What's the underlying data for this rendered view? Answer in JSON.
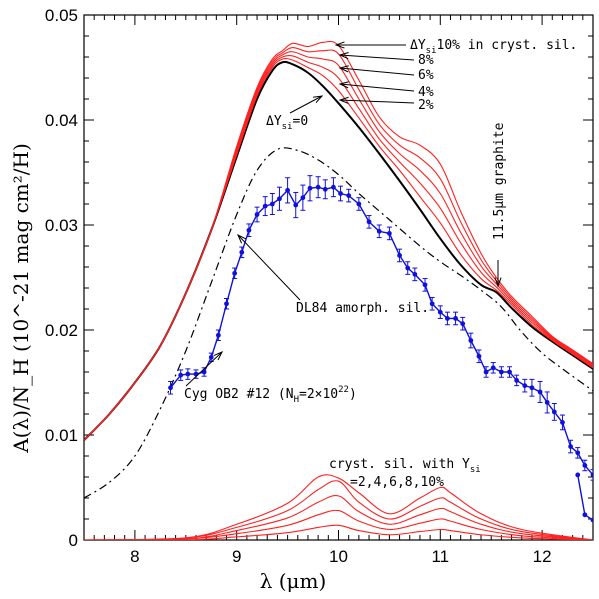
{
  "chart_data": {
    "type": "line",
    "xlabel": "λ (μm)",
    "ylabel": "A(λ)/N_H (10^-21 mag cm²/H)",
    "xlim": [
      7.5,
      12.5
    ],
    "ylim": [
      0,
      0.05
    ],
    "x_ticks": [
      "8",
      "9",
      "10",
      "11",
      "12"
    ],
    "y_ticks": [
      "0",
      "0.01",
      "0.02",
      "0.03",
      "0.04",
      "0.05"
    ],
    "annotations": {
      "y10": "10% in cryst. sil.",
      "y8": "8%",
      "y6": "6%",
      "y4": "4%",
      "y2": "2%",
      "y0": "=0",
      "graphite": "11.5μm graphite",
      "dl84": "DL84 amorph. sil.",
      "cyg": "Cyg OB2 #12 (N",
      "cyg_mid": "=2×10",
      "cyg_exp": "22",
      "cyg_end": ")",
      "cryst_line1": "cryst. sil. with Y",
      "cryst_line2": "=2,4,6,8,10%",
      "sub_si": "si",
      "sub_h": "H"
    },
    "series": [
      {
        "name": "ΔY_si=0",
        "color": "#000000",
        "x": [
          7.5,
          7.75,
          8.0,
          8.25,
          8.5,
          8.75,
          9.0,
          9.2,
          9.35,
          9.45,
          9.55,
          9.7,
          9.85,
          10.0,
          10.2,
          10.4,
          10.6,
          10.8,
          11.0,
          11.2,
          11.4,
          11.55,
          11.7,
          11.9,
          12.1,
          12.3,
          12.5
        ],
        "values": [
          0.0095,
          0.012,
          0.015,
          0.0185,
          0.0235,
          0.0295,
          0.0365,
          0.042,
          0.0447,
          0.0455,
          0.0453,
          0.0445,
          0.0432,
          0.0416,
          0.0393,
          0.0368,
          0.0342,
          0.0315,
          0.0287,
          0.0262,
          0.0243,
          0.0236,
          0.0221,
          0.0203,
          0.0189,
          0.0176,
          0.0163
        ]
      },
      {
        "name": "ΔY_si=2%",
        "color": "#ff2020",
        "x": [
          7.5,
          7.75,
          8.0,
          8.25,
          8.5,
          8.75,
          9.0,
          9.2,
          9.35,
          9.45,
          9.55,
          9.7,
          9.85,
          10.0,
          10.2,
          10.4,
          10.6,
          10.8,
          11.0,
          11.2,
          11.4,
          11.55,
          11.7,
          11.9,
          12.1,
          12.3,
          12.5
        ],
        "values": [
          0.0095,
          0.012,
          0.015,
          0.0185,
          0.0235,
          0.0295,
          0.0367,
          0.0423,
          0.045,
          0.0458,
          0.0457,
          0.045,
          0.0442,
          0.0428,
          0.0402,
          0.0375,
          0.0352,
          0.0327,
          0.0302,
          0.0272,
          0.0249,
          0.0238,
          0.0224,
          0.0205,
          0.019,
          0.0177,
          0.0164
        ]
      },
      {
        "name": "ΔY_si=4%",
        "color": "#ff2020",
        "x": [
          7.5,
          7.75,
          8.0,
          8.25,
          8.5,
          8.75,
          9.0,
          9.2,
          9.35,
          9.45,
          9.55,
          9.7,
          9.85,
          10.0,
          10.2,
          10.4,
          10.6,
          10.8,
          11.0,
          11.2,
          11.4,
          11.55,
          11.7,
          11.9,
          12.1,
          12.3,
          12.5
        ],
        "values": [
          0.0095,
          0.012,
          0.015,
          0.0185,
          0.0235,
          0.0295,
          0.0369,
          0.0425,
          0.0452,
          0.046,
          0.0461,
          0.0455,
          0.045,
          0.044,
          0.0411,
          0.0382,
          0.036,
          0.034,
          0.0316,
          0.0283,
          0.0255,
          0.0241,
          0.0226,
          0.0207,
          0.0191,
          0.0178,
          0.0165
        ]
      },
      {
        "name": "ΔY_si=6%",
        "color": "#ff2020",
        "x": [
          7.5,
          7.75,
          8.0,
          8.25,
          8.5,
          8.75,
          9.0,
          9.2,
          9.35,
          9.45,
          9.55,
          9.7,
          9.85,
          10.0,
          10.2,
          10.4,
          10.6,
          10.8,
          11.0,
          11.2,
          11.4,
          11.55,
          11.7,
          11.9,
          12.1,
          12.3,
          12.5
        ],
        "values": [
          0.0095,
          0.012,
          0.015,
          0.0185,
          0.0235,
          0.0295,
          0.0371,
          0.0427,
          0.0454,
          0.0462,
          0.0465,
          0.046,
          0.0458,
          0.0452,
          0.042,
          0.0389,
          0.0368,
          0.0352,
          0.033,
          0.0293,
          0.0261,
          0.0244,
          0.0228,
          0.0209,
          0.0192,
          0.0179,
          0.0166
        ]
      },
      {
        "name": "ΔY_si=8%",
        "color": "#ff2020",
        "x": [
          7.5,
          7.75,
          8.0,
          8.25,
          8.5,
          8.75,
          9.0,
          9.2,
          9.35,
          9.45,
          9.55,
          9.7,
          9.85,
          10.0,
          10.2,
          10.4,
          10.6,
          10.8,
          11.0,
          11.2,
          11.4,
          11.55,
          11.7,
          11.9,
          12.1,
          12.3,
          12.5
        ],
        "values": [
          0.0095,
          0.012,
          0.015,
          0.0185,
          0.0235,
          0.0295,
          0.0373,
          0.0429,
          0.0456,
          0.0464,
          0.0469,
          0.0465,
          0.0466,
          0.0463,
          0.0429,
          0.0396,
          0.0376,
          0.0364,
          0.0344,
          0.0303,
          0.0267,
          0.0247,
          0.023,
          0.0211,
          0.0193,
          0.018,
          0.0167
        ]
      },
      {
        "name": "ΔY_si=10%",
        "color": "#ff2020",
        "x": [
          7.5,
          7.75,
          8.0,
          8.25,
          8.5,
          8.75,
          9.0,
          9.2,
          9.35,
          9.45,
          9.55,
          9.7,
          9.85,
          10.0,
          10.2,
          10.4,
          10.6,
          10.8,
          11.0,
          11.2,
          11.4,
          11.55,
          11.7,
          11.9,
          12.1,
          12.3,
          12.5
        ],
        "values": [
          0.0095,
          0.012,
          0.015,
          0.0185,
          0.0235,
          0.0295,
          0.0375,
          0.0431,
          0.0458,
          0.0466,
          0.0473,
          0.047,
          0.0474,
          0.0471,
          0.0438,
          0.0403,
          0.0384,
          0.0376,
          0.0358,
          0.0313,
          0.0273,
          0.025,
          0.0232,
          0.0213,
          0.0194,
          0.0181,
          0.0168
        ]
      },
      {
        "name": "DL84 amorph. sil.",
        "color": "#000000",
        "dash": "8,4,2,4",
        "x": [
          7.5,
          7.75,
          8.0,
          8.25,
          8.5,
          8.75,
          9.0,
          9.2,
          9.4,
          9.6,
          9.8,
          10.0,
          10.2,
          10.5,
          10.8,
          11.0,
          11.2,
          11.4,
          11.6,
          11.8,
          12.0,
          12.2,
          12.4,
          12.5
        ],
        "values": [
          0.004,
          0.0055,
          0.008,
          0.0125,
          0.018,
          0.0245,
          0.031,
          0.0352,
          0.0372,
          0.0371,
          0.0362,
          0.0348,
          0.033,
          0.0305,
          0.028,
          0.0265,
          0.0252,
          0.0238,
          0.0222,
          0.0198,
          0.0178,
          0.0163,
          0.0149,
          0.0142
        ]
      },
      {
        "name": "Cyg OB2 #12",
        "color": "#1010dd",
        "errorbars": true,
        "x": [
          8.35,
          8.45,
          8.52,
          8.6,
          8.68,
          8.75,
          8.82,
          8.9,
          8.98,
          9.05,
          9.12,
          9.2,
          9.28,
          9.35,
          9.42,
          9.5,
          9.58,
          9.65,
          9.72,
          9.8,
          9.87,
          9.95,
          10.02,
          10.1,
          10.2,
          10.3,
          10.4,
          10.5,
          10.6,
          10.68,
          10.75,
          10.85,
          10.92,
          11.0,
          11.07,
          11.15,
          11.22,
          11.3,
          11.38,
          11.45,
          11.52,
          11.6,
          11.68,
          11.75,
          11.83,
          11.9,
          11.98,
          12.05,
          12.12,
          12.2,
          12.28,
          12.35,
          12.42,
          12.5
        ],
        "values": [
          0.0145,
          0.0157,
          0.0158,
          0.0158,
          0.016,
          0.0174,
          0.0195,
          0.0225,
          0.0254,
          0.0274,
          0.0295,
          0.031,
          0.0318,
          0.032,
          0.0325,
          0.0333,
          0.0319,
          0.0326,
          0.0335,
          0.0336,
          0.0334,
          0.0336,
          0.033,
          0.0328,
          0.032,
          0.0303,
          0.0294,
          0.0292,
          0.0271,
          0.0259,
          0.0253,
          0.0243,
          0.0225,
          0.0217,
          0.0211,
          0.0211,
          0.0206,
          0.019,
          0.0175,
          0.016,
          0.0164,
          0.016,
          0.016,
          0.0152,
          0.0147,
          0.0145,
          0.0141,
          0.0131,
          0.0122,
          0.0112,
          0.0089,
          0.0083,
          0.0071,
          0.0062
        ],
        "extra": {
          "x": [
            12.35,
            12.42,
            12.5
          ],
          "values": [
            0.0062,
            0.0024,
            0.0019
          ]
        },
        "err": [
          0.0006,
          0.0005,
          0.0005,
          0.0004,
          0.0004,
          0.0004,
          0.0005,
          0.0005,
          0.0005,
          0.0005,
          0.0006,
          0.0007,
          0.0009,
          0.001,
          0.0011,
          0.0012,
          0.0012,
          0.0012,
          0.0012,
          0.001,
          0.0009,
          0.0009,
          0.0007,
          0.0006,
          0.0006,
          0.0006,
          0.0006,
          0.0006,
          0.0006,
          0.0006,
          0.0006,
          0.0006,
          0.0006,
          0.0006,
          0.0006,
          0.0006,
          0.0006,
          0.0007,
          0.0006,
          0.0005,
          0.0005,
          0.0005,
          0.0005,
          0.0005,
          0.0006,
          0.0008,
          0.001,
          0.001,
          0.0008,
          0.0007,
          0.0006,
          0.0005,
          0.0005,
          0.0005
        ]
      },
      {
        "name": "cryst. sil. 2%",
        "color": "#ff2020",
        "x": [
          7.5,
          8.5,
          9.0,
          9.5,
          9.8,
          10.0,
          10.2,
          10.5,
          10.8,
          11.0,
          11.1,
          11.4,
          11.8,
          12.5
        ],
        "values": [
          0.0,
          0.0,
          0.0003,
          0.0007,
          0.0012,
          0.0014,
          0.0009,
          0.0005,
          0.0008,
          0.001,
          0.0009,
          0.0005,
          0.0002,
          0.0
        ]
      },
      {
        "name": "cryst. sil. 4%",
        "color": "#ff2020",
        "x": [
          7.5,
          8.5,
          9.0,
          9.5,
          9.8,
          10.0,
          10.2,
          10.5,
          10.8,
          11.0,
          11.1,
          11.4,
          11.8,
          12.5
        ],
        "values": [
          0.0,
          0.0001,
          0.0006,
          0.0014,
          0.0024,
          0.0028,
          0.0018,
          0.001,
          0.0016,
          0.002,
          0.0018,
          0.001,
          0.0004,
          0.0
        ]
      },
      {
        "name": "cryst. sil. 6%",
        "color": "#ff2020",
        "x": [
          7.5,
          8.5,
          9.0,
          9.5,
          9.8,
          10.0,
          10.2,
          10.5,
          10.8,
          11.0,
          11.1,
          11.4,
          11.8,
          12.5
        ],
        "values": [
          0.0,
          0.0001,
          0.0009,
          0.0021,
          0.0036,
          0.0042,
          0.0027,
          0.0015,
          0.0024,
          0.003,
          0.0027,
          0.0015,
          0.0006,
          0.0
        ]
      },
      {
        "name": "cryst. sil. 8%",
        "color": "#ff2020",
        "x": [
          7.5,
          8.5,
          9.0,
          9.5,
          9.8,
          10.0,
          10.2,
          10.5,
          10.8,
          11.0,
          11.1,
          11.4,
          11.8,
          12.5
        ],
        "values": [
          0.0,
          0.0002,
          0.0012,
          0.0028,
          0.0048,
          0.0056,
          0.0036,
          0.002,
          0.0032,
          0.004,
          0.0036,
          0.002,
          0.0008,
          0.0
        ]
      },
      {
        "name": "cryst. sil. 10%",
        "color": "#ff2020",
        "x": [
          7.5,
          8.5,
          9.0,
          9.5,
          9.8,
          10.0,
          10.2,
          10.5,
          10.8,
          11.0,
          11.1,
          11.4,
          11.8,
          12.5
        ],
        "values": [
          0.0,
          0.0002,
          0.0015,
          0.0035,
          0.006,
          0.0059,
          0.0045,
          0.0025,
          0.004,
          0.005,
          0.0045,
          0.0025,
          0.001,
          0.0
        ]
      }
    ]
  }
}
